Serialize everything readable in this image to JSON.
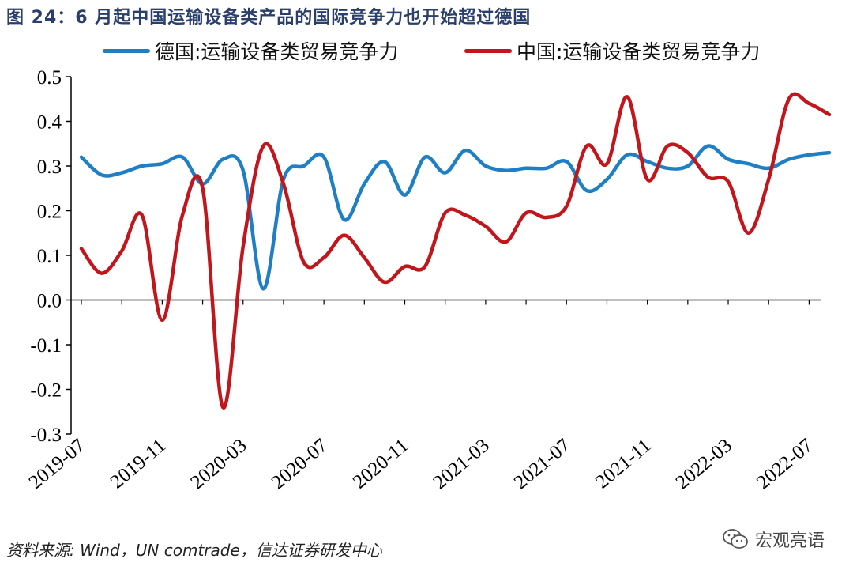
{
  "title": "图 24：6 月起中国运输设备类产品的国际竞争力也开始超过德国",
  "source": "资料来源: Wind，UN comtrade，信达证券研发中心",
  "watermark": {
    "text": "宏观亮语",
    "icon": "wechat-icon"
  },
  "colors": {
    "germany": "#1f7fc4",
    "china": "#c0161c",
    "axis": "#000000"
  },
  "chart_data": {
    "type": "line",
    "x": [
      "2019-07",
      "2019-08",
      "2019-09",
      "2019-10",
      "2019-11",
      "2019-12",
      "2020-01",
      "2020-02",
      "2020-03",
      "2020-04",
      "2020-05",
      "2020-06",
      "2020-07",
      "2020-08",
      "2020-09",
      "2020-10",
      "2020-11",
      "2020-12",
      "2021-01",
      "2021-02",
      "2021-03",
      "2021-04",
      "2021-05",
      "2021-06",
      "2021-07",
      "2021-08",
      "2021-09",
      "2021-10",
      "2021-11",
      "2021-12",
      "2022-01",
      "2022-02",
      "2022-03",
      "2022-04",
      "2022-05",
      "2022-06",
      "2022-07",
      "2022-08"
    ],
    "xticks": [
      "2019-07",
      "2019-11",
      "2020-03",
      "2020-07",
      "2020-11",
      "2021-03",
      "2021-07",
      "2021-11",
      "2022-03",
      "2022-07"
    ],
    "yticks": [
      "0.5",
      "0.4",
      "0.3",
      "0.2",
      "0.1",
      "0.0",
      "-0.1",
      "-0.2",
      "-0.3"
    ],
    "ylim": [
      -0.3,
      0.5
    ],
    "legend_position": "top",
    "series": [
      {
        "name": "德国:运输设备类贸易竞争力",
        "color": "#1f7fc4",
        "values": [
          0.32,
          0.28,
          0.285,
          0.3,
          0.305,
          0.32,
          0.26,
          0.315,
          0.29,
          0.025,
          0.27,
          0.3,
          0.32,
          0.18,
          0.26,
          0.31,
          0.235,
          0.32,
          0.285,
          0.335,
          0.3,
          0.29,
          0.295,
          0.295,
          0.31,
          0.245,
          0.27,
          0.325,
          0.31,
          0.295,
          0.3,
          0.345,
          0.315,
          0.305,
          0.295,
          0.315,
          0.325,
          0.33
        ]
      },
      {
        "name": "中国:运输设备类贸易竞争力",
        "color": "#c0161c",
        "values": [
          0.115,
          0.06,
          0.11,
          0.19,
          -0.045,
          0.19,
          0.25,
          -0.24,
          0.12,
          0.345,
          0.26,
          0.085,
          0.095,
          0.145,
          0.095,
          0.04,
          0.075,
          0.075,
          0.195,
          0.19,
          0.165,
          0.13,
          0.195,
          0.185,
          0.21,
          0.345,
          0.305,
          0.455,
          0.27,
          0.345,
          0.33,
          0.275,
          0.265,
          0.15,
          0.27,
          0.45,
          0.44,
          0.415
        ]
      }
    ]
  }
}
